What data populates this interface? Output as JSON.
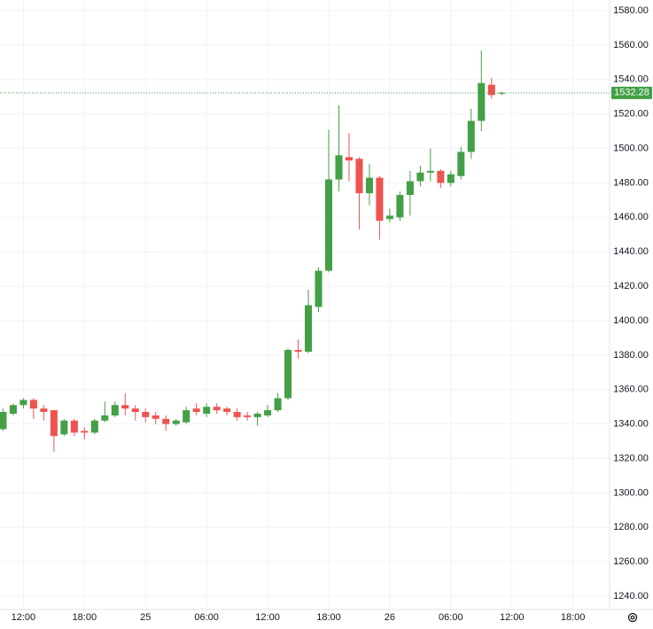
{
  "chart_data": {
    "type": "candlestick",
    "x": [
      10,
      11,
      12,
      13,
      14,
      15,
      16,
      17,
      18,
      19,
      20,
      21,
      22,
      23,
      24,
      25,
      26,
      27,
      28,
      29,
      30,
      31,
      32,
      33,
      34,
      35,
      36,
      37,
      38,
      39,
      40,
      41,
      42,
      43,
      44,
      45,
      46,
      47,
      48,
      49,
      50,
      51,
      52,
      53,
      54,
      55,
      56,
      57,
      58,
      59
    ],
    "series": [
      {
        "open": [
          1337,
          1346,
          1351,
          1354,
          1349,
          1348,
          1334,
          1342,
          1336,
          1335,
          1342,
          1345,
          1351,
          1349,
          1347,
          1345,
          1343,
          1340,
          1341,
          1349,
          1346,
          1350,
          1349,
          1347,
          1345,
          1344,
          1345,
          1348,
          1355,
          1383,
          1382,
          1408,
          1429,
          1482,
          1495,
          1494,
          1474,
          1483,
          1459,
          1460,
          1473,
          1481,
          1486,
          1487,
          1480,
          1484,
          1498,
          1516,
          1537,
          1532
        ],
        "high": [
          1349,
          1352,
          1355,
          1355,
          1351,
          1348,
          1343,
          1343,
          1338,
          1343,
          1353,
          1353,
          1358,
          1351,
          1349,
          1347,
          1345,
          1343,
          1350,
          1352,
          1352,
          1352,
          1350,
          1349,
          1347,
          1347,
          1351,
          1358,
          1384,
          1389,
          1418,
          1431,
          1511,
          1525,
          1509,
          1495,
          1491,
          1484,
          1465,
          1475,
          1487,
          1490,
          1500,
          1488,
          1487,
          1501,
          1523,
          1557,
          1541,
          1533
        ],
        "low": [
          1336,
          1345,
          1349,
          1343,
          1342,
          1324,
          1333,
          1333,
          1331,
          1334,
          1341,
          1344,
          1345,
          1342,
          1341,
          1340,
          1336,
          1339,
          1340,
          1345,
          1344,
          1346,
          1345,
          1342,
          1342,
          1339,
          1344,
          1347,
          1354,
          1378,
          1381,
          1405,
          1428,
          1475,
          1481,
          1453,
          1467,
          1447,
          1457,
          1458,
          1461,
          1478,
          1481,
          1477,
          1478,
          1482,
          1494,
          1510,
          1529,
          1531
        ],
        "close": [
          1347,
          1351,
          1354,
          1349,
          1347,
          1333,
          1342,
          1335,
          1335,
          1342,
          1345,
          1351,
          1349,
          1347,
          1344,
          1343,
          1340,
          1342,
          1348,
          1347,
          1350,
          1348,
          1347,
          1344,
          1344,
          1346,
          1348,
          1355,
          1383,
          1382,
          1409,
          1429,
          1482,
          1496,
          1493,
          1474,
          1483,
          1458,
          1461,
          1473,
          1481,
          1486,
          1487,
          1480,
          1485,
          1498,
          1516,
          1538,
          1531,
          1532.28
        ]
      }
    ],
    "up_color": "#43a047",
    "down_color": "#ef5350",
    "last_price": 1532.28,
    "xlim": [
      9.7,
      69.6
    ],
    "xticks": [
      {
        "value": 12,
        "label": "12:00"
      },
      {
        "value": 18,
        "label": "18:00"
      },
      {
        "value": 24,
        "label": "25"
      },
      {
        "value": 30,
        "label": "06:00"
      },
      {
        "value": 36,
        "label": "12:00"
      },
      {
        "value": 42,
        "label": "18:00"
      },
      {
        "value": 48,
        "label": "26"
      },
      {
        "value": 54,
        "label": "06:00"
      },
      {
        "value": 60,
        "label": "12:00"
      },
      {
        "value": 66,
        "label": "18:00"
      }
    ],
    "ylim": [
      1232.3,
      1586.2
    ],
    "yticks": [
      {
        "value": 1240,
        "label": "1240.00"
      },
      {
        "value": 1260,
        "label": "1260.00"
      },
      {
        "value": 1280,
        "label": "1280.00"
      },
      {
        "value": 1300,
        "label": "1300.00"
      },
      {
        "value": 1320,
        "label": "1320.00"
      },
      {
        "value": 1340,
        "label": "1340.00"
      },
      {
        "value": 1360,
        "label": "1360.00"
      },
      {
        "value": 1380,
        "label": "1380.00"
      },
      {
        "value": 1400,
        "label": "1400.00"
      },
      {
        "value": 1420,
        "label": "1420.00"
      },
      {
        "value": 1440,
        "label": "1440.00"
      },
      {
        "value": 1460,
        "label": "1460.00"
      },
      {
        "value": 1480,
        "label": "1480.00"
      },
      {
        "value": 1500,
        "label": "1500.00"
      },
      {
        "value": 1520,
        "label": "1520.00"
      },
      {
        "value": 1540,
        "label": "1540.00"
      },
      {
        "value": 1560,
        "label": "1560.00"
      },
      {
        "value": 1580,
        "label": "1580.00"
      }
    ],
    "grid": true
  }
}
